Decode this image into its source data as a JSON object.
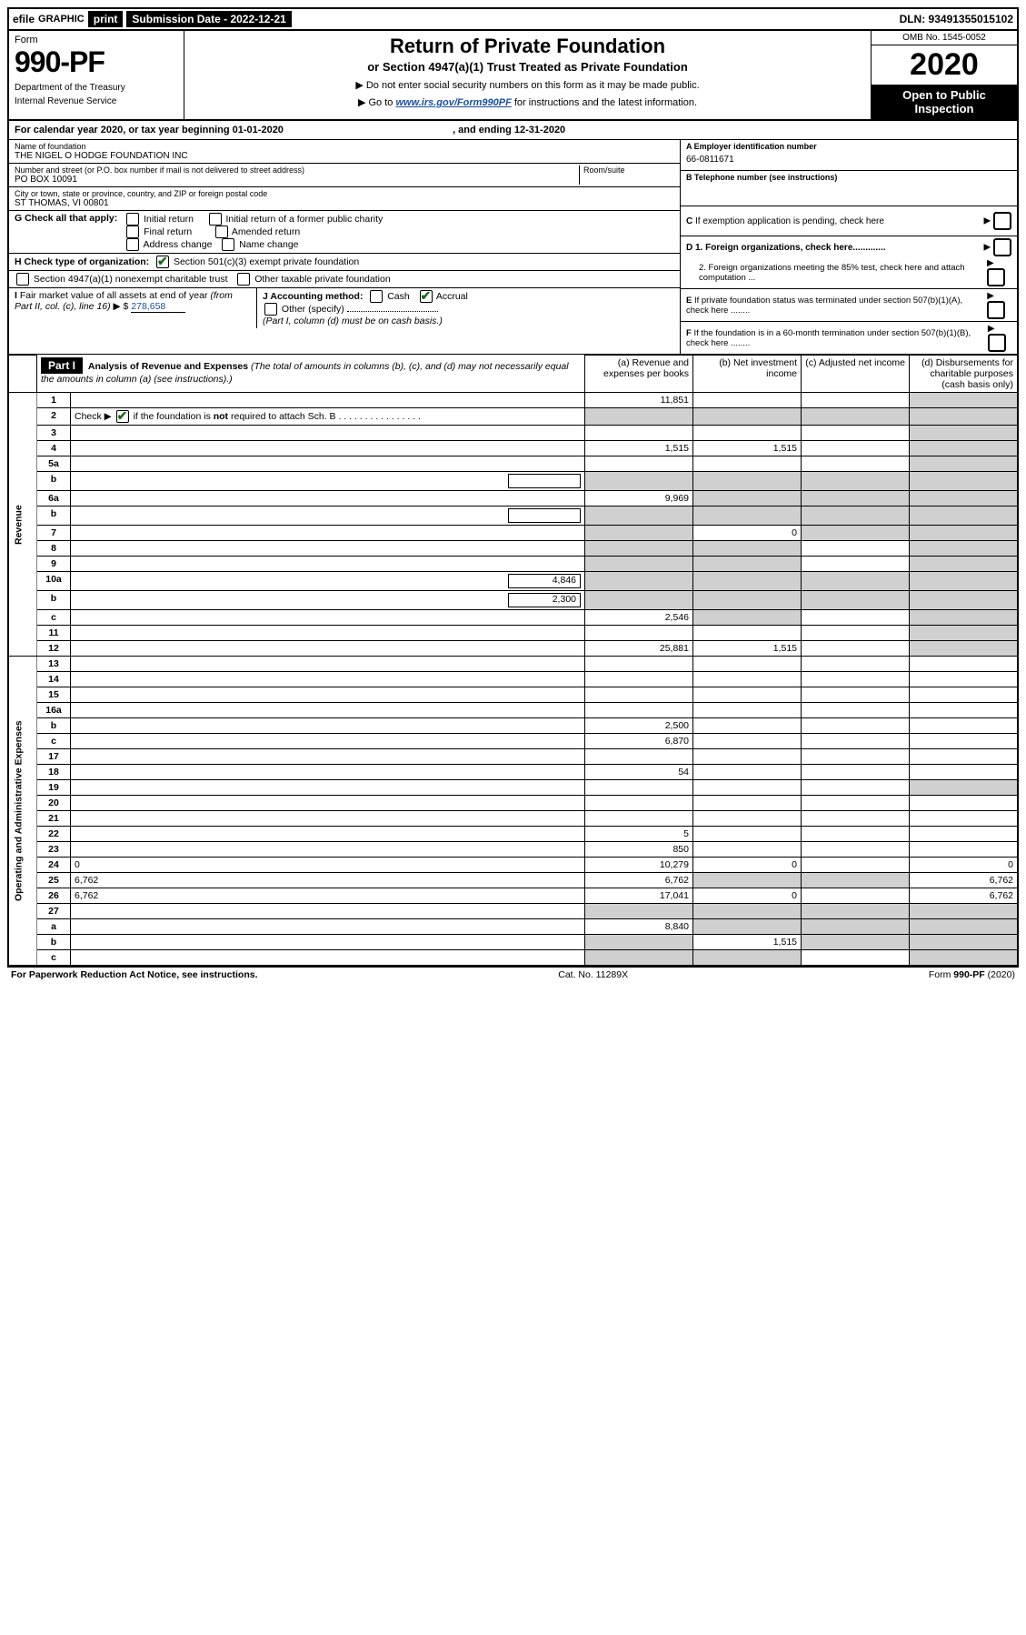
{
  "topbar": {
    "efile": "efile",
    "graphic": "GRAPHIC",
    "print": "print",
    "submission_label": "Submission Date - 2022-12-21",
    "dln": "DLN: 93491355015102"
  },
  "header": {
    "form_word": "Form",
    "form_number": "990-PF",
    "dept1": "Department of the Treasury",
    "dept2": "Internal Revenue Service",
    "title": "Return of Private Foundation",
    "subtitle": "or Section 4947(a)(1) Trust Treated as Private Foundation",
    "instr1": "▶ Do not enter social security numbers on this form as it may be made public.",
    "instr2_pre": "▶ Go to ",
    "instr2_link": "www.irs.gov/Form990PF",
    "instr2_post": " for instructions and the latest information.",
    "omb": "OMB No. 1545-0052",
    "year": "2020",
    "open1": "Open to Public",
    "open2": "Inspection"
  },
  "cal_year": {
    "pre": "For calendar year 2020, or tax year beginning ",
    "begin": "01-01-2020",
    "mid": " , and ending ",
    "end": "12-31-2020"
  },
  "info": {
    "name_lbl": "Name of foundation",
    "name_val": "THE NIGEL O HODGE FOUNDATION INC",
    "addr_lbl": "Number and street (or P.O. box number if mail is not delivered to street address)",
    "addr_val": "PO BOX 10091",
    "room_lbl": "Room/suite",
    "city_lbl": "City or town, state or province, country, and ZIP or foreign postal code",
    "city_val": "ST THOMAS, VI  00801",
    "ein_lbl": "A Employer identification number",
    "ein_val": "66-0811671",
    "phone_lbl": "B Telephone number (see instructions)",
    "c_lbl": "C If exemption application is pending, check here",
    "d1_lbl": "D 1. Foreign organizations, check here.............",
    "d2_lbl": "2. Foreign organizations meeting the 85% test, check here and attach computation ...",
    "e_lbl": "E If private foundation status was terminated under section 507(b)(1)(A), check here ........",
    "f_lbl": "F If the foundation is in a 60-month termination under section 507(b)(1)(B), check here ........"
  },
  "g": {
    "lbl": "G Check all that apply:",
    "opts": [
      "Initial return",
      "Initial return of a former public charity",
      "Final return",
      "Amended return",
      "Address change",
      "Name change"
    ]
  },
  "h": {
    "lbl": "H Check type of organization:",
    "opt1": "Section 501(c)(3) exempt private foundation",
    "opt2": "Section 4947(a)(1) nonexempt charitable trust",
    "opt3": "Other taxable private foundation"
  },
  "i": {
    "lbl": "I Fair market value of all assets at end of year (from Part II, col. (c), line 16) ▶ $",
    "val": "278,658"
  },
  "j": {
    "lbl": "J Accounting method:",
    "cash": "Cash",
    "accrual": "Accrual",
    "other": "Other (specify)",
    "note": "(Part I, column (d) must be on cash basis.)"
  },
  "part1": {
    "label": "Part I",
    "title": "Analysis of Revenue and Expenses",
    "title_note": "(The total of amounts in columns (b), (c), and (d) may not necessarily equal the amounts in column (a) (see instructions).)",
    "col_a": "(a) Revenue and expenses per books",
    "col_b": "(b) Net investment income",
    "col_c": "(c) Adjusted net income",
    "col_d": "(d) Disbursements for charitable purposes (cash basis only)"
  },
  "side_labels": {
    "revenue": "Revenue",
    "expenses": "Operating and Administrative Expenses"
  },
  "rows": [
    {
      "n": "1",
      "d": "",
      "a": "11,851",
      "b": "",
      "c": "",
      "shade": [
        "d"
      ]
    },
    {
      "n": "2",
      "d": "",
      "a": "",
      "b": "",
      "c": "",
      "shade": [
        "a",
        "b",
        "c",
        "d"
      ],
      "check": true
    },
    {
      "n": "3",
      "d": "",
      "a": "",
      "b": "",
      "c": "",
      "shade": [
        "d"
      ]
    },
    {
      "n": "4",
      "d": "",
      "a": "1,515",
      "b": "1,515",
      "c": "",
      "shade": [
        "d"
      ]
    },
    {
      "n": "5a",
      "d": "",
      "a": "",
      "b": "",
      "c": "",
      "shade": [
        "d"
      ]
    },
    {
      "n": "b",
      "d": "",
      "a": "",
      "b": "",
      "c": "",
      "shade": [
        "a",
        "b",
        "c",
        "d"
      ],
      "inline_box": true
    },
    {
      "n": "6a",
      "d": "",
      "a": "9,969",
      "b": "",
      "c": "",
      "shade": [
        "b",
        "c",
        "d"
      ]
    },
    {
      "n": "b",
      "d": "",
      "a": "",
      "b": "",
      "c": "",
      "shade": [
        "a",
        "b",
        "c",
        "d"
      ],
      "inline_box": true
    },
    {
      "n": "7",
      "d": "",
      "a": "",
      "b": "0",
      "c": "",
      "shade": [
        "a",
        "c",
        "d"
      ]
    },
    {
      "n": "8",
      "d": "",
      "a": "",
      "b": "",
      "c": "",
      "shade": [
        "a",
        "b",
        "d"
      ]
    },
    {
      "n": "9",
      "d": "",
      "a": "",
      "b": "",
      "c": "",
      "shade": [
        "a",
        "b",
        "d"
      ]
    },
    {
      "n": "10a",
      "d": "",
      "a": "",
      "b": "",
      "c": "",
      "shade": [
        "a",
        "b",
        "c",
        "d"
      ],
      "box_val": "4,846"
    },
    {
      "n": "b",
      "d": "",
      "a": "",
      "b": "",
      "c": "",
      "shade": [
        "a",
        "b",
        "c",
        "d"
      ],
      "box_val": "2,300"
    },
    {
      "n": "c",
      "d": "",
      "a": "2,546",
      "b": "",
      "c": "",
      "shade": [
        "b",
        "d"
      ]
    },
    {
      "n": "11",
      "d": "",
      "a": "",
      "b": "",
      "c": "",
      "shade": [
        "d"
      ]
    },
    {
      "n": "12",
      "d": "",
      "a": "25,881",
      "b": "1,515",
      "c": "",
      "shade": [
        "d"
      ]
    },
    {
      "n": "13",
      "d": "",
      "a": "",
      "b": "",
      "c": ""
    },
    {
      "n": "14",
      "d": "",
      "a": "",
      "b": "",
      "c": ""
    },
    {
      "n": "15",
      "d": "",
      "a": "",
      "b": "",
      "c": ""
    },
    {
      "n": "16a",
      "d": "",
      "a": "",
      "b": "",
      "c": ""
    },
    {
      "n": "b",
      "d": "",
      "a": "2,500",
      "b": "",
      "c": ""
    },
    {
      "n": "c",
      "d": "",
      "a": "6,870",
      "b": "",
      "c": ""
    },
    {
      "n": "17",
      "d": "",
      "a": "",
      "b": "",
      "c": ""
    },
    {
      "n": "18",
      "d": "",
      "a": "54",
      "b": "",
      "c": ""
    },
    {
      "n": "19",
      "d": "",
      "a": "",
      "b": "",
      "c": "",
      "shade": [
        "d"
      ]
    },
    {
      "n": "20",
      "d": "",
      "a": "",
      "b": "",
      "c": ""
    },
    {
      "n": "21",
      "d": "",
      "a": "",
      "b": "",
      "c": ""
    },
    {
      "n": "22",
      "d": "",
      "a": "5",
      "b": "",
      "c": ""
    },
    {
      "n": "23",
      "d": "",
      "a": "850",
      "b": "",
      "c": ""
    },
    {
      "n": "24",
      "d": "0",
      "a": "10,279",
      "b": "0",
      "c": ""
    },
    {
      "n": "25",
      "d": "6,762",
      "a": "6,762",
      "b": "",
      "c": "",
      "shade": [
        "b",
        "c"
      ]
    },
    {
      "n": "26",
      "d": "6,762",
      "a": "17,041",
      "b": "0",
      "c": ""
    },
    {
      "n": "27",
      "d": "",
      "a": "",
      "b": "",
      "c": "",
      "shade": [
        "a",
        "b",
        "c",
        "d"
      ]
    },
    {
      "n": "a",
      "d": "",
      "a": "8,840",
      "b": "",
      "c": "",
      "shade": [
        "b",
        "c",
        "d"
      ]
    },
    {
      "n": "b",
      "d": "",
      "a": "",
      "b": "1,515",
      "c": "",
      "shade": [
        "a",
        "c",
        "d"
      ]
    },
    {
      "n": "c",
      "d": "",
      "a": "",
      "b": "",
      "c": "",
      "shade": [
        "a",
        "b",
        "d"
      ]
    }
  ],
  "footer": {
    "left": "For Paperwork Reduction Act Notice, see instructions.",
    "mid": "Cat. No. 11289X",
    "right": "Form 990-PF (2020)"
  }
}
